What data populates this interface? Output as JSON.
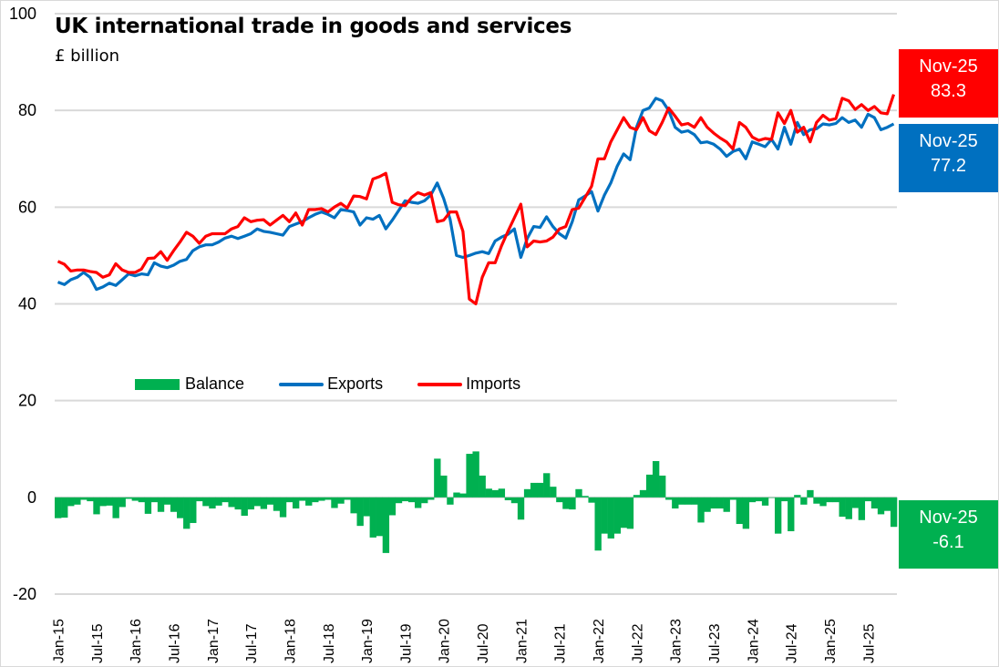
{
  "title": "UK international trade in goods and services",
  "subtitle": "£ billion",
  "colors": {
    "exports": "#0070c0",
    "imports": "#ff0000",
    "balance": "#00b050",
    "grid": "#d9d9d9"
  },
  "legend": [
    {
      "label": "Balance",
      "type": "bar",
      "color": "#00b050"
    },
    {
      "label": "Exports",
      "type": "line",
      "color": "#0070c0"
    },
    {
      "label": "Imports",
      "type": "line",
      "color": "#ff0000"
    }
  ],
  "callouts": {
    "imports": {
      "period": "Nov-25",
      "value": "83.3"
    },
    "exports": {
      "period": "Nov-25",
      "value": "77.2"
    },
    "balance": {
      "period": "Nov-25",
      "value": "-6.1"
    }
  },
  "chart_data": {
    "type": "line",
    "title": "UK international trade in goods and services",
    "ylabel": "£ billion",
    "xlabel": "",
    "ylim": [
      -20,
      100
    ],
    "yticks": [
      100,
      80,
      60,
      40,
      20,
      0,
      -20
    ],
    "grid": true,
    "legend_position": "center",
    "x_start": "Jan-15",
    "x_end": "Nov-25",
    "xtick_labels": [
      "Jan-15",
      "Jul-15",
      "Jan-16",
      "Jul-16",
      "Jan-17",
      "Jul-17",
      "Jan-18",
      "Jul-18",
      "Jan-19",
      "Jul-19",
      "Jan-20",
      "Jul-20",
      "Jan-21",
      "Jul-21",
      "Jan-22",
      "Jul-22",
      "Jan-23",
      "Jul-23",
      "Jan-24",
      "Jul-24",
      "Jan-25",
      "Jul-25"
    ],
    "series": [
      {
        "name": "Exports",
        "type": "line",
        "values": [
          44.5,
          44.0,
          45.0,
          45.5,
          46.5,
          45.5,
          43.0,
          43.5,
          44.3,
          43.8,
          45.0,
          46.2,
          45.8,
          46.2,
          46.0,
          48.5,
          47.8,
          47.5,
          48.0,
          48.8,
          49.2,
          51.0,
          51.8,
          52.2,
          52.2,
          52.8,
          53.6,
          54.0,
          53.5,
          54.0,
          54.5,
          55.5,
          55.0,
          54.8,
          54.5,
          54.2,
          56.0,
          56.5,
          57.0,
          57.8,
          58.5,
          59.0,
          58.5,
          57.8,
          59.5,
          59.3,
          59.0,
          56.3,
          57.8,
          57.5,
          58.3,
          55.5,
          57.3,
          59.3,
          61.3,
          61.0,
          60.8,
          61.3,
          62.5,
          65.0,
          61.8,
          57.5,
          50.0,
          49.6,
          50.0,
          50.5,
          50.8,
          50.4,
          53.0,
          53.8,
          54.4,
          55.5,
          49.6,
          53.5,
          56.0,
          55.8,
          58.0,
          56.0,
          54.5,
          53.6,
          57.0,
          61.5,
          62.3,
          63.2,
          59.2,
          62.5,
          65.0,
          68.5,
          71.0,
          69.8,
          76.5,
          80.0,
          80.5,
          82.5,
          82.0,
          80.0,
          76.5,
          75.5,
          75.8,
          75.0,
          73.3,
          73.5,
          73.0,
          72.0,
          70.5,
          71.5,
          72.0,
          70.0,
          73.5,
          73.0,
          72.5,
          74.0,
          72.0,
          76.5,
          73.0,
          77.5,
          75.0,
          76.0,
          76.2,
          77.2,
          77.0,
          77.3,
          78.5,
          77.5,
          78.0,
          76.5,
          79.2,
          78.5,
          76.0,
          76.5,
          77.2
        ]
      },
      {
        "name": "Imports",
        "type": "line",
        "values": [
          48.8,
          48.2,
          46.8,
          47.0,
          47.0,
          46.7,
          46.5,
          45.5,
          46.0,
          48.3,
          47.0,
          46.5,
          46.5,
          47.2,
          49.4,
          49.5,
          50.8,
          49.0,
          51.0,
          52.8,
          54.8,
          54.0,
          52.5,
          54.0,
          54.5,
          54.5,
          54.5,
          55.5,
          56.0,
          57.8,
          57.0,
          57.3,
          57.4,
          56.3,
          57.3,
          58.3,
          57.0,
          58.8,
          56.3,
          59.5,
          59.5,
          59.7,
          59.0,
          60.0,
          60.8,
          59.8,
          62.3,
          62.2,
          61.7,
          65.8,
          66.3,
          67.0,
          61.0,
          60.5,
          60.3,
          62.0,
          63.0,
          62.5,
          63.0,
          57.0,
          57.3,
          59.0,
          59.0,
          55.0,
          41.0,
          40.0,
          45.5,
          48.5,
          48.5,
          52.0,
          55.0,
          57.8,
          60.6,
          51.8,
          53.0,
          52.8,
          53.0,
          53.8,
          55.5,
          56.0,
          59.5,
          59.8,
          62.0,
          64.3,
          70.0,
          70.0,
          73.5,
          76.0,
          78.5,
          76.5,
          76.0,
          78.5,
          75.8,
          75.0,
          77.5,
          80.5,
          78.8,
          77.0,
          77.3,
          76.5,
          78.5,
          76.5,
          75.3,
          74.3,
          73.5,
          72.0,
          77.5,
          76.5,
          74.5,
          73.8,
          74.2,
          74.0,
          79.5,
          77.3,
          80.0,
          75.5,
          76.5,
          73.5,
          77.5,
          79.0,
          78.0,
          78.3,
          82.5,
          82.0,
          80.2,
          81.2,
          80.0,
          80.8,
          79.5,
          79.3,
          83.3
        ]
      },
      {
        "name": "Balance",
        "type": "bar",
        "values": [
          -4.3,
          -4.2,
          -1.8,
          -1.5,
          -0.5,
          -0.8,
          -3.5,
          -1.8,
          -1.7,
          -4.3,
          -2.0,
          -0.3,
          -0.7,
          -1.0,
          -3.4,
          -1.0,
          -3.0,
          -1.5,
          -3.0,
          -4.3,
          -6.5,
          -5.3,
          -0.8,
          -1.8,
          -2.3,
          -1.7,
          -1.0,
          -2.0,
          -2.5,
          -3.8,
          -2.5,
          -1.8,
          -2.4,
          -1.5,
          -2.8,
          -4.1,
          -1.0,
          -2.3,
          -0.7,
          -1.7,
          -1.0,
          -0.7,
          -0.5,
          -2.2,
          -1.3,
          -0.5,
          -3.3,
          -5.9,
          -3.9,
          -8.3,
          -8.0,
          -11.5,
          -3.7,
          -1.2,
          -0.8,
          -1.0,
          -2.2,
          -1.2,
          -0.5,
          8.0,
          4.5,
          -1.5,
          1.0,
          0.8,
          9.0,
          9.5,
          4.5,
          1.8,
          1.5,
          1.8,
          -0.6,
          -1.2,
          -4.6,
          1.7,
          3.0,
          3.0,
          5.0,
          2.2,
          -1.0,
          -2.4,
          -2.5,
          1.7,
          0.3,
          -1.1,
          -11.0,
          -7.5,
          -8.5,
          -7.5,
          -6.3,
          -6.5,
          0.5,
          1.5,
          4.7,
          7.5,
          4.5,
          -0.5,
          -2.3,
          -1.5,
          -1.5,
          -1.5,
          -5.2,
          -3.0,
          -2.3,
          -2.3,
          -3.0,
          -0.5,
          -5.5,
          -6.5,
          -1.0,
          -0.8,
          -1.7,
          0.0,
          -7.5,
          -0.8,
          -7.0,
          0.5,
          -1.5,
          1.5,
          -1.3,
          -1.8,
          -1.0,
          -1.0,
          -4.0,
          -4.5,
          -2.2,
          -4.7,
          -0.8,
          -2.3,
          -3.5,
          -2.8,
          -6.1
        ]
      }
    ]
  }
}
